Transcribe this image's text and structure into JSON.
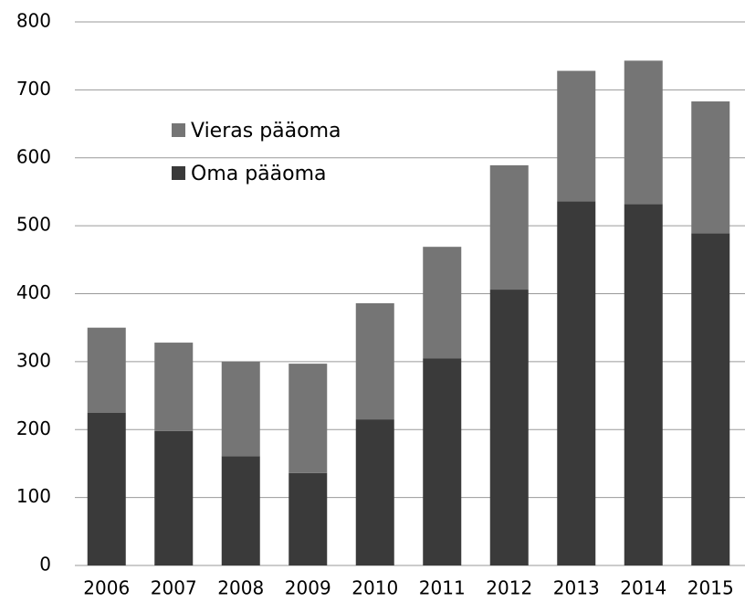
{
  "chart_data": {
    "type": "stacked_bar",
    "categories": [
      "2006",
      "2007",
      "2008",
      "2009",
      "2010",
      "2011",
      "2012",
      "2013",
      "2014",
      "2015"
    ],
    "series": [
      {
        "name": "Oma pääoma",
        "color": "#3a3a3a",
        "values": [
          225,
          198,
          161,
          136,
          215,
          305,
          406,
          536,
          532,
          489
        ]
      },
      {
        "name": "Vieras pääoma",
        "color": "#757575",
        "values": [
          125,
          130,
          139,
          161,
          171,
          164,
          183,
          192,
          211,
          194
        ]
      }
    ],
    "ylim": [
      0,
      800
    ],
    "yticks": [
      0,
      100,
      200,
      300,
      400,
      500,
      600,
      700,
      800
    ],
    "grid": true
  }
}
